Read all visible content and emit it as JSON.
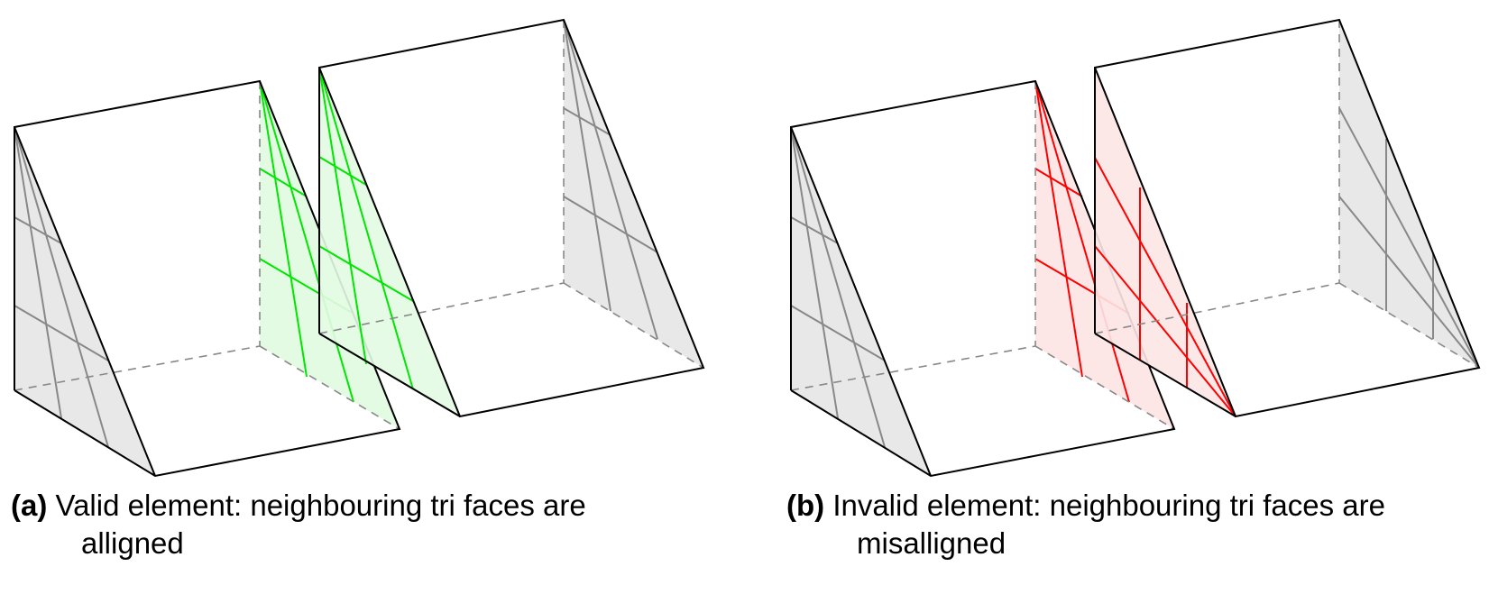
{
  "panels": [
    {
      "label": "(a)",
      "caption_line1": "Valid element: neighbouring tri faces are",
      "caption_line2": "alligned",
      "accent_color": "#00e600",
      "fill_color": "#e3fbe3"
    },
    {
      "label": "(b)",
      "caption_line1": "Invalid element: neighbouring tri faces are",
      "caption_line2": "misalligned",
      "accent_color": "#ff0000",
      "fill_color": "#fde6e6"
    }
  ]
}
